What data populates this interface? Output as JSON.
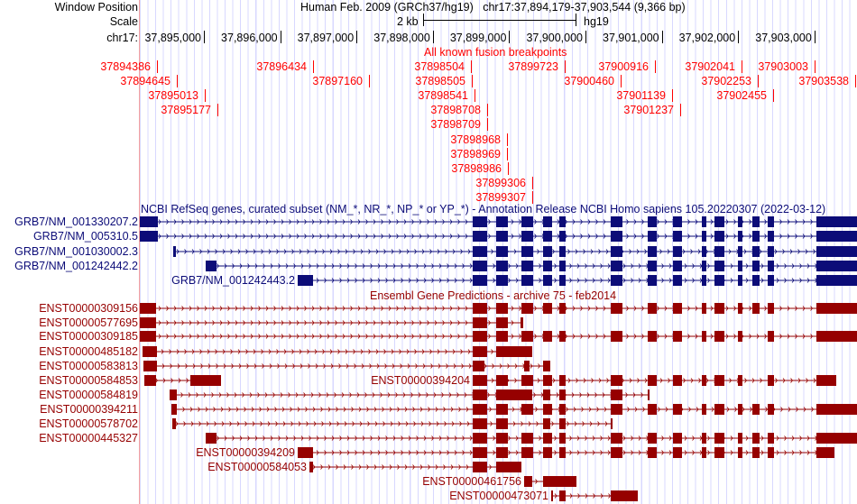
{
  "header": {
    "window_position_label": "Window Position",
    "window_position_value": "Human Feb. 2009 (GRCh37/hg19)   chr17:37,894,179-37,903,544 (9,366 bp)",
    "scale_label": "Scale",
    "scale_value": "2 kb",
    "scale_assembly": "hg19",
    "chrom_label": "chr17:",
    "ruler_ticks": [
      "37,895,000",
      "37,896,000",
      "37,897,000",
      "37,898,000",
      "37,899,000",
      "37,900,000",
      "37,901,000",
      "37,902,000",
      "37,903,000"
    ]
  },
  "fusion_track": {
    "title": "All known fusion breakpoints",
    "color": "#ff0000",
    "rows": [
      [
        "37894386",
        "37896434",
        "37898504",
        "37899723",
        "37900916",
        "37902041",
        "37903003"
      ],
      [
        "37894645",
        "37897160",
        "37898505",
        "37900460",
        "37902253",
        "37903538"
      ],
      [
        "37895013",
        "37898541",
        "37901139",
        "37902455"
      ],
      [
        "37895177",
        "37898708",
        "37901237"
      ],
      [
        "37898709"
      ],
      [
        "37898968"
      ],
      [
        "37898969"
      ],
      [
        "37898986"
      ],
      [
        "37899306"
      ],
      [
        "37899307"
      ]
    ]
  },
  "refseq_track": {
    "title": "NCBI RefSeq genes, curated subset (NM_*, NR_*, NP_* or YP_*) - Annotation Release NCBI Homo sapiens 105.20220307 (2022-03-12)",
    "color": "#0c0c78",
    "transcripts": [
      {
        "name": "GRB7/NM_001330207.2",
        "label_pos": "left"
      },
      {
        "name": "GRB7/NM_005310.5",
        "label_pos": "left"
      },
      {
        "name": "GRB7/NM_001030002.3",
        "label_pos": "left"
      },
      {
        "name": "GRB7/NM_001242442.2",
        "label_pos": "left"
      },
      {
        "name": "GRB7/NM_001242443.2",
        "label_pos": "inline"
      }
    ]
  },
  "ensembl_track": {
    "title": "Ensembl Gene Predictions - archive 75 - feb2014",
    "color": "#960000",
    "transcripts": [
      {
        "name": "ENST00000309156",
        "label_pos": "left"
      },
      {
        "name": "ENST00000577695",
        "label_pos": "left"
      },
      {
        "name": "ENST00000309185",
        "label_pos": "left"
      },
      {
        "name": "ENST00000485182",
        "label_pos": "left"
      },
      {
        "name": "ENST00000583813",
        "label_pos": "left"
      },
      {
        "name": "ENST00000584853",
        "label_pos": "left"
      },
      {
        "name": "ENST00000394204",
        "label_pos": "inline"
      },
      {
        "name": "ENST00000584819",
        "label_pos": "left"
      },
      {
        "name": "ENST00000394211",
        "label_pos": "left"
      },
      {
        "name": "ENST00000578702",
        "label_pos": "left"
      },
      {
        "name": "ENST00000445327",
        "label_pos": "left"
      },
      {
        "name": "ENST00000394209",
        "label_pos": "inline"
      },
      {
        "name": "ENST00000584053",
        "label_pos": "inline"
      },
      {
        "name": "ENST00000461756",
        "label_pos": "inline"
      },
      {
        "name": "ENST00000473071",
        "label_pos": "inline"
      }
    ]
  }
}
